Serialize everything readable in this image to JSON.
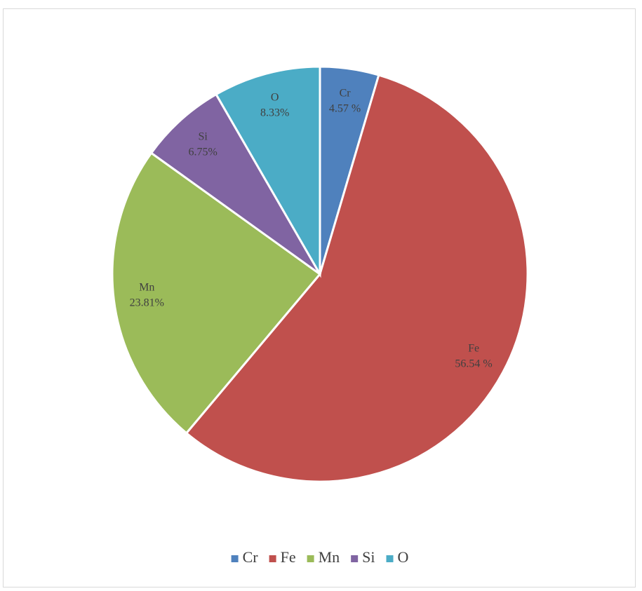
{
  "chart_data": {
    "type": "pie",
    "categories": [
      "Cr",
      "Fe",
      "Mn",
      "Si",
      "O"
    ],
    "values": [
      4.57,
      56.54,
      23.81,
      6.75,
      8.33
    ],
    "value_labels": [
      "4.57 %",
      "56.54 %",
      "23.81%",
      "6.75%",
      "8.33%"
    ],
    "colors": [
      "#4f81bd",
      "#c0504d",
      "#9bbb59",
      "#8064a2",
      "#4bacc6"
    ],
    "legend": "bottom"
  }
}
